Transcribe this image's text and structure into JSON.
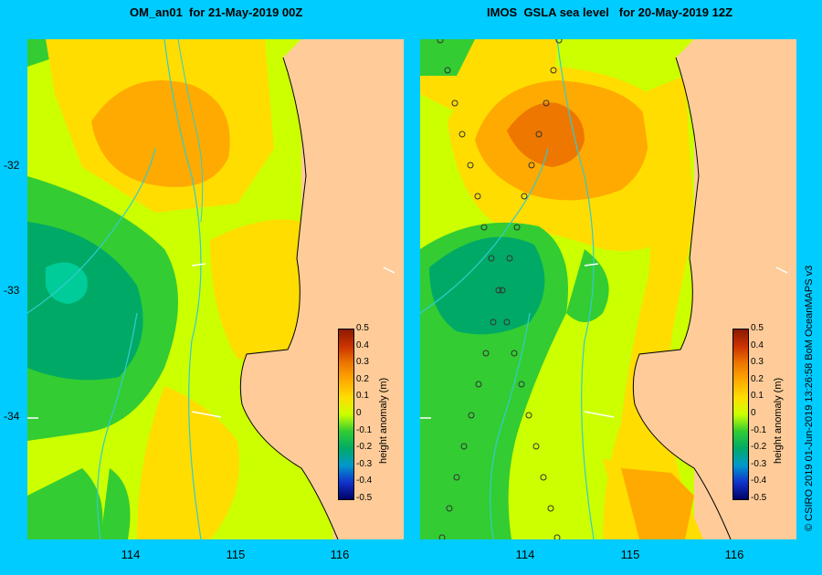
{
  "left_panel": {
    "title": "OM_an01  for 21-May-2019 00Z"
  },
  "right_panel": {
    "title": "IMOS  GSLA sea level   for 20-May-2019 12Z"
  },
  "latitude_labels": [
    "-32",
    "-33",
    "-34"
  ],
  "longitude_labels": [
    "114",
    "115",
    "116"
  ],
  "colorbar": {
    "label": "height anomaly (m)",
    "ticks": [
      "0.5",
      "0.4",
      "0.3",
      "0.2",
      "0.1",
      "0",
      "-0.1",
      "-0.2",
      "-0.3",
      "-0.4",
      "-0.5"
    ],
    "colors": [
      "#8b1a00",
      "#cc3300",
      "#ee7700",
      "#ffaa00",
      "#ffdd00",
      "#ccff00",
      "#33cc33",
      "#00aa66",
      "#0099cc",
      "#1133cc",
      "#000066"
    ]
  },
  "colors": {
    "land": "#ffcc99",
    "frame": "#00ccff",
    "current_arrows": "#ffffff",
    "bathymetry_lines": "#33cccc"
  },
  "credit": "© CSIRO 2019   01-Jun-2019 13:26:58 BoM OceanMAPS v3"
}
